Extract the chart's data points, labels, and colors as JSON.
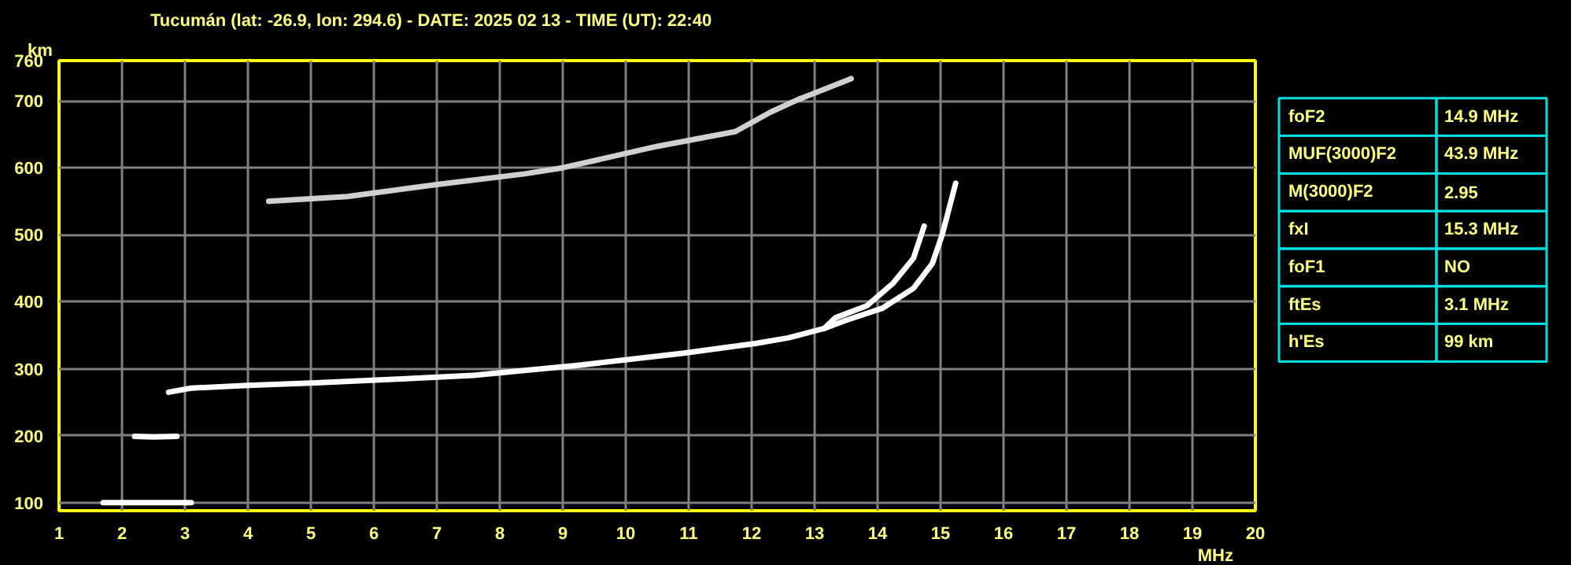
{
  "chart_data": [
    {
      "type": "line",
      "title": "Tucumán (lat: -26.9, lon: 294.6) - DATE: 2025 02 13 - TIME (UT): 22:40",
      "xlabel": "MHz",
      "ylabel": "km",
      "xlim": [
        1,
        20
      ],
      "ylim": [
        88,
        760
      ],
      "xticks": [
        1,
        2,
        3,
        4,
        5,
        6,
        7,
        8,
        9,
        10,
        11,
        12,
        13,
        14,
        15,
        16,
        17,
        18,
        19,
        20
      ],
      "yticks": [
        100,
        200,
        300,
        400,
        500,
        600,
        700,
        760
      ],
      "grid": true,
      "marker": "none",
      "line_style": "solid",
      "series": [
        {
          "color": "#ffffff",
          "x": [
            1.7,
            2.4,
            3.1
          ],
          "values": [
            100,
            100,
            100
          ]
        },
        {
          "color": "#ffffff",
          "x": [
            2.2,
            2.5,
            2.87
          ],
          "values": [
            199,
            198,
            199
          ]
        },
        {
          "color": "#ffffff",
          "x": [
            2.74,
            3.1,
            4,
            5.08,
            6.5,
            7.58,
            9.24,
            10.9,
            12.08,
            12.58,
            13.15,
            13.49,
            14.07,
            14.57,
            14.87,
            15.03,
            15.24
          ],
          "values": [
            265,
            271,
            275,
            279,
            285,
            290,
            305,
            323,
            338,
            346,
            360,
            372,
            390,
            420,
            457,
            501,
            577
          ]
        },
        {
          "color": "#ffffff",
          "x": [
            13.15,
            13.33,
            13.83,
            14.24,
            14.57,
            14.74
          ],
          "values": [
            360,
            376,
            394,
            427,
            465,
            513
          ]
        },
        {
          "color": "#d0d0d0",
          "x": [
            4.33,
            5.58,
            7,
            8.4,
            9.0,
            10.5,
            11.74,
            12.3,
            12.74,
            13.58
          ],
          "values": [
            550,
            557,
            575,
            591,
            600,
            632,
            654,
            683,
            702,
            733
          ]
        }
      ]
    },
    {
      "type": "other",
      "categories": [
        "foF2",
        "MUF(3000)F2",
        "M(3000)F2",
        "fxI",
        "foF1",
        "ftEs",
        "h'Es"
      ],
      "value_labels": [
        "14.9 MHz",
        "43.9 MHz",
        "2.95",
        "15.3 MHz",
        "NO",
        "3.1 MHz",
        "99 km"
      ]
    }
  ]
}
